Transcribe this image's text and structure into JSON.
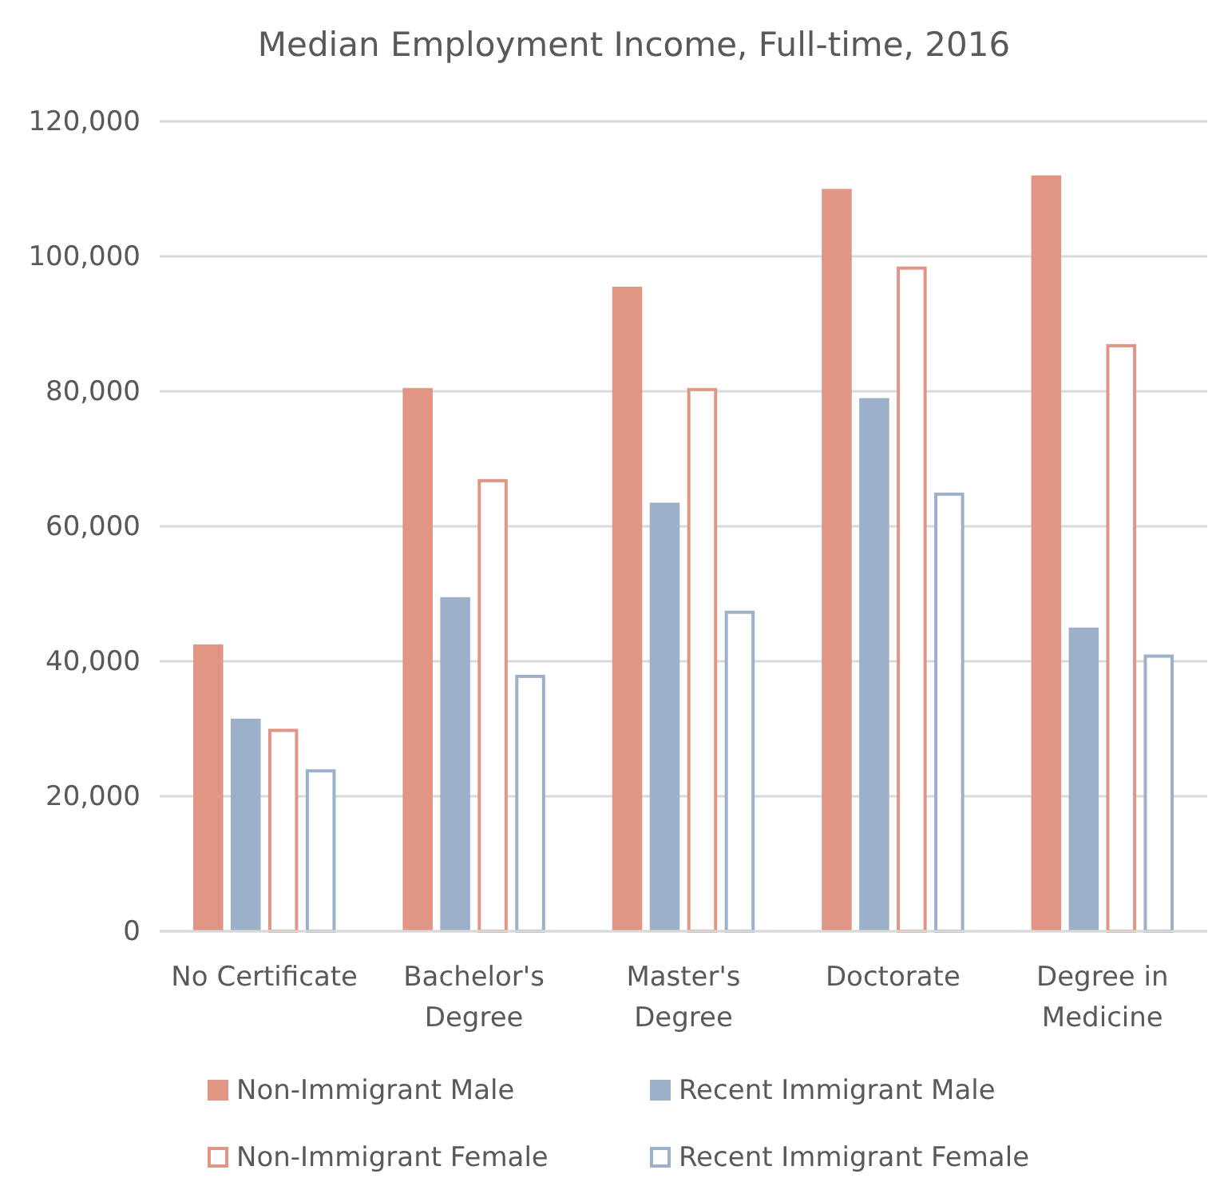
{
  "chart_data": {
    "type": "bar",
    "title": "Median Employment Income, Full-time,  2016",
    "categories": [
      "No Certificate",
      "Bachelor's Degree",
      "Master's Degree",
      "Doctorate",
      "Degree in Medicine"
    ],
    "series": [
      {
        "name": "Non-Immigrant Male",
        "color": "#e09585",
        "values": [
          42500,
          80500,
          95500,
          110000,
          112000
        ]
      },
      {
        "name": "Recent Immigrant Male",
        "color": "#9db0c9",
        "values": [
          31500,
          49500,
          63500,
          79000,
          45000
        ]
      },
      {
        "name": "Non-Immigrant Female",
        "color": "#e09585",
        "values": [
          30000,
          67000,
          80500,
          98500,
          87000
        ]
      },
      {
        "name": "Recent Immigrant Female",
        "color": "#9db0c9",
        "values": [
          24000,
          38000,
          47500,
          65000,
          41000
        ]
      }
    ],
    "ylim": [
      0,
      120000
    ],
    "yticks": [
      {
        "value": 0,
        "label": "0"
      },
      {
        "value": 20000,
        "label": "20,000"
      },
      {
        "value": 40000,
        "label": "40,000"
      },
      {
        "value": 60000,
        "label": "60,000"
      },
      {
        "value": 80000,
        "label": "80,000"
      },
      {
        "value": 100000,
        "label": "100,000"
      },
      {
        "value": 120000,
        "label": "120,000"
      }
    ],
    "grid": "y",
    "legend": "bottom"
  }
}
